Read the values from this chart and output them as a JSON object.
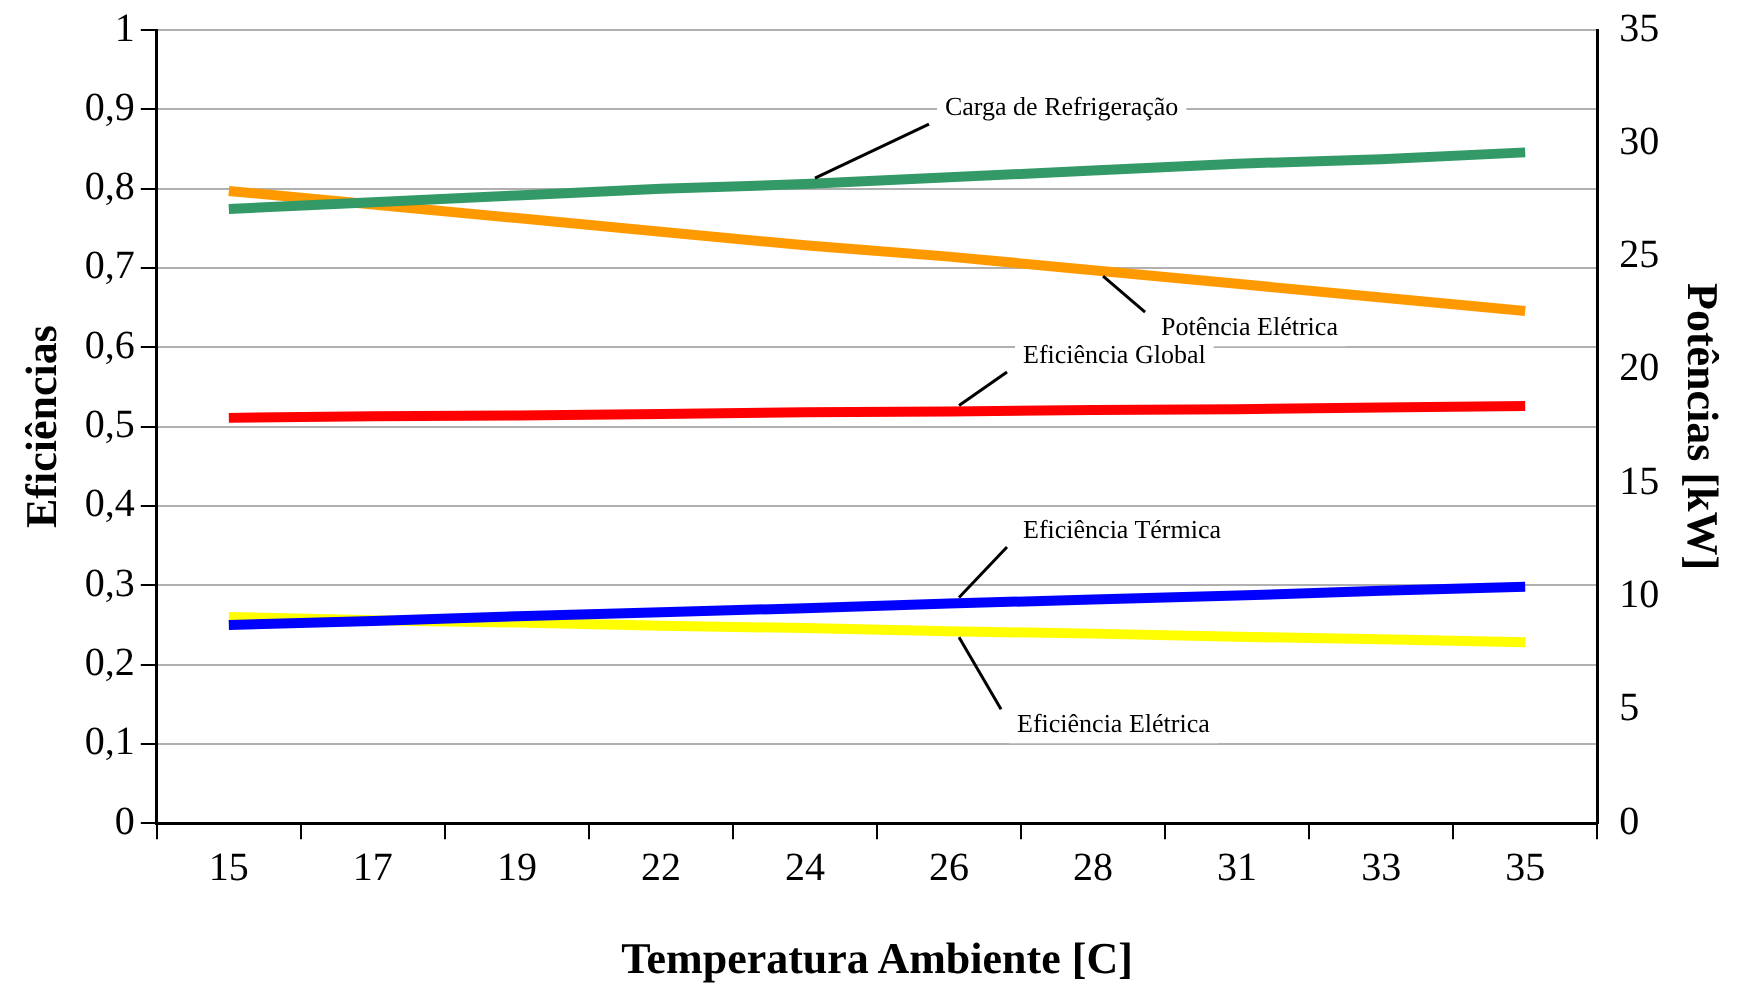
{
  "chart_data": {
    "type": "line",
    "xlabel": "Temperatura Ambiente [C]",
    "ylabel": "Eficiências",
    "y2label": "Potências [kW]",
    "categories": [
      "15",
      "17",
      "19",
      "22",
      "24",
      "26",
      "28",
      "31",
      "33",
      "35"
    ],
    "ylim": [
      0,
      1
    ],
    "yticks": [
      0,
      {
        "value": 0.1,
        "label": "0,1"
      },
      {
        "value": 0.2,
        "label": "0,2"
      },
      {
        "value": 0.3,
        "label": "0,3"
      },
      {
        "value": 0.4,
        "label": "0,4"
      },
      {
        "value": 0.5,
        "label": "0,5"
      },
      {
        "value": 0.6,
        "label": "0,6"
      },
      {
        "value": 0.7,
        "label": "0,7"
      },
      {
        "value": 0.8,
        "label": "0,8"
      },
      {
        "value": 0.9,
        "label": "0,9"
      },
      1
    ],
    "y2lim": [
      0,
      35
    ],
    "y2ticks": [
      0,
      5,
      10,
      15,
      20,
      25,
      30,
      35
    ],
    "grid": "y",
    "legend": false,
    "marker": "none",
    "line_style": "solid",
    "series": [
      {
        "name": "Carga de Refrigeração",
        "color": "#339966",
        "axis": "y2",
        "values": [
          27.1,
          27.4,
          27.7,
          28.0,
          28.2,
          28.5,
          28.8,
          29.1,
          29.3,
          29.6
        ]
      },
      {
        "name": "Potência Elétrica",
        "color": "#ff9900",
        "axis": "y2",
        "values": [
          27.9,
          27.3,
          26.7,
          26.1,
          25.5,
          25.0,
          24.4,
          23.8,
          23.2,
          22.6
        ]
      },
      {
        "name": "Eficiência Global",
        "color": "#ff0000",
        "values": [
          0.511,
          0.513,
          0.514,
          0.516,
          0.518,
          0.519,
          0.521,
          0.522,
          0.524,
          0.526
        ]
      },
      {
        "name": "Eficiência Térmica",
        "color": "#0000ff",
        "values": [
          0.25,
          0.255,
          0.261,
          0.266,
          0.271,
          0.277,
          0.282,
          0.287,
          0.293,
          0.298
        ]
      },
      {
        "name": "Eficiência Elétrica",
        "color": "#ffff00",
        "values": [
          0.26,
          0.256,
          0.253,
          0.249,
          0.246,
          0.242,
          0.239,
          0.235,
          0.232,
          0.228
        ]
      }
    ]
  }
}
